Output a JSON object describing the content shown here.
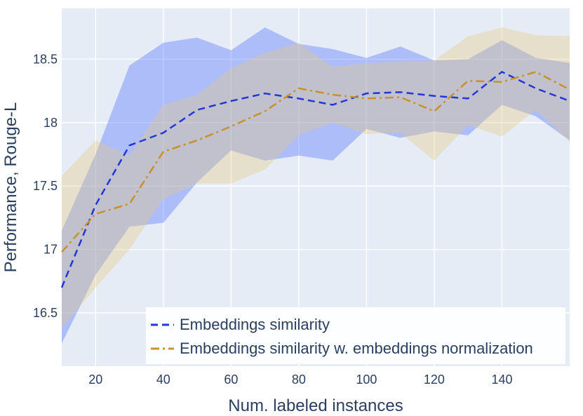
{
  "chart_data": {
    "type": "line",
    "title": "",
    "xlabel": "Num. labeled instances",
    "ylabel": "Performance, Rouge-L",
    "xlim": [
      10,
      160
    ],
    "ylim": [
      16.08,
      18.9
    ],
    "xticks": [
      20,
      40,
      60,
      80,
      100,
      120,
      140
    ],
    "yticks": [
      16.5,
      17,
      17.5,
      18,
      18.5
    ],
    "ytick_labels": [
      "16.5",
      "17",
      "17.5",
      "18",
      "18.5"
    ],
    "grid": true,
    "legend_position": "bottom-right",
    "x": [
      10,
      20,
      30,
      40,
      50,
      60,
      70,
      80,
      90,
      100,
      110,
      120,
      130,
      140,
      150,
      160
    ],
    "series": [
      {
        "name": "Embeddings similarity",
        "color": "#2237d8",
        "band_color": "#5a78ff",
        "dash": "dash",
        "values": [
          16.7,
          17.35,
          17.82,
          17.92,
          18.1,
          18.17,
          18.23,
          18.19,
          18.14,
          18.23,
          18.24,
          18.21,
          18.19,
          18.4,
          18.27,
          18.17
        ],
        "upper": [
          17.15,
          17.75,
          18.45,
          18.63,
          18.67,
          18.57,
          18.75,
          18.62,
          18.58,
          18.51,
          18.6,
          18.49,
          18.5,
          18.65,
          18.51,
          18.47
        ],
        "lower": [
          16.26,
          16.8,
          17.18,
          17.21,
          17.53,
          17.78,
          17.7,
          17.74,
          17.7,
          17.95,
          17.88,
          17.93,
          17.9,
          18.14,
          18.05,
          17.86
        ]
      },
      {
        "name": "Embeddings similarity w. embeddings normalization",
        "color": "#c8912a",
        "band_color": "#e6c97a",
        "dash": "dashdot",
        "values": [
          16.98,
          17.28,
          17.36,
          17.77,
          17.86,
          17.97,
          18.09,
          18.27,
          18.22,
          18.19,
          18.2,
          18.09,
          18.33,
          18.32,
          18.4,
          18.26
        ],
        "upper": [
          17.58,
          17.86,
          17.74,
          18.14,
          18.22,
          18.43,
          18.55,
          18.63,
          18.44,
          18.47,
          18.48,
          18.49,
          18.68,
          18.75,
          18.69,
          18.68
        ],
        "lower": [
          16.38,
          16.7,
          17.0,
          17.4,
          17.52,
          17.52,
          17.63,
          17.9,
          18.0,
          17.91,
          17.92,
          17.7,
          17.98,
          17.89,
          18.1,
          17.85
        ]
      }
    ]
  }
}
